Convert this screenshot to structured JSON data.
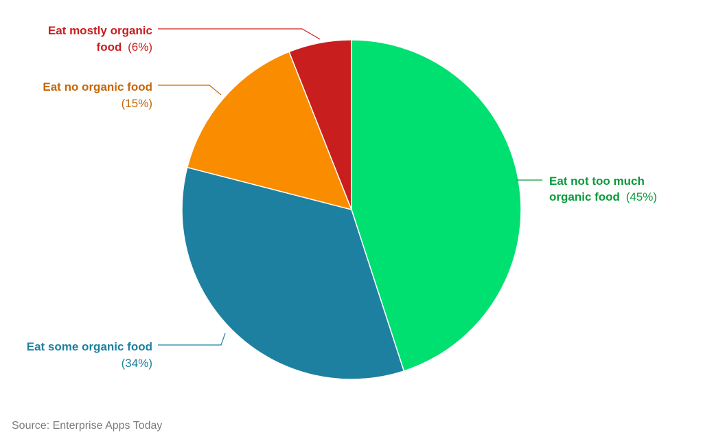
{
  "chart_data": {
    "type": "pie",
    "slices": [
      {
        "label_line1": "Eat not too much",
        "label_line2": "organic food",
        "pct_text": "(45%)",
        "value": 45,
        "color": "#00e070",
        "text_color": "#0a9a3c"
      },
      {
        "label_line1": "Eat some organic food",
        "label_line2": "",
        "pct_text": "(34%)",
        "value": 34,
        "color": "#1e80a0",
        "text_color": "#1e80a0"
      },
      {
        "label_line1": "Eat no organic food",
        "label_line2": "",
        "pct_text": "(15%)",
        "value": 15,
        "color": "#fa8c00",
        "text_color": "#c8660a"
      },
      {
        "label_line1": "Eat mostly organic",
        "label_line2": "food",
        "pct_text": "(6%)",
        "value": 6,
        "color": "#c81e1e",
        "text_color": "#c81e1e"
      }
    ]
  },
  "source": "Source: Enterprise Apps Today"
}
